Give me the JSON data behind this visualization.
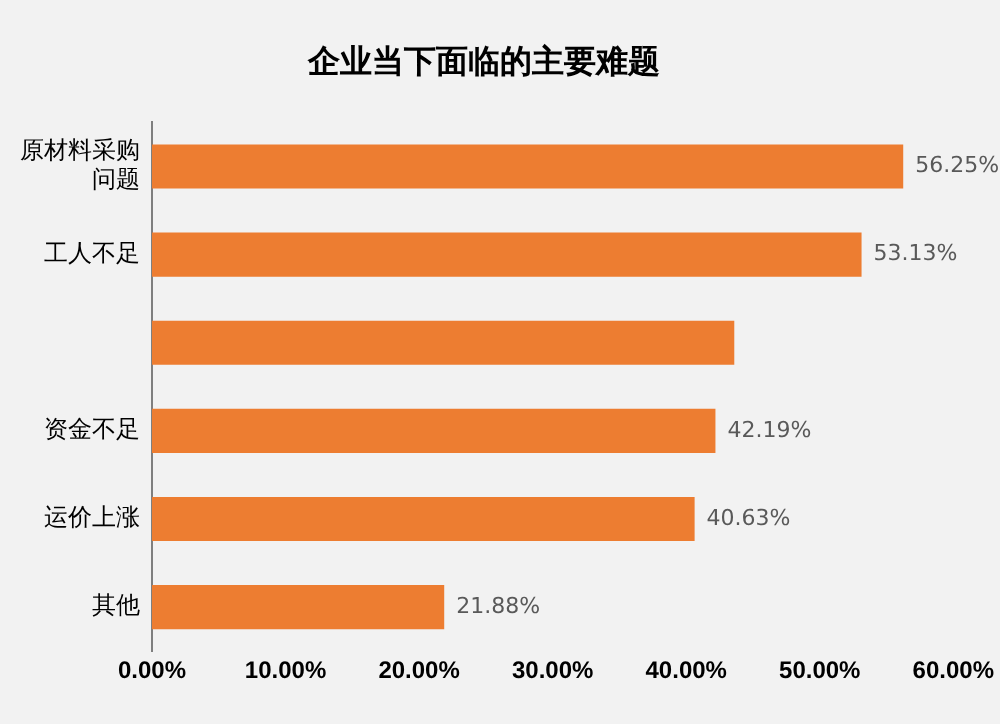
{
  "chart_data": {
    "type": "bar",
    "orientation": "horizontal",
    "title": "企业当下面临的主要难题",
    "categories": [
      "原材料采购问题",
      "工人不足",
      null,
      "资金不足",
      "运价上涨",
      "其他"
    ],
    "values": [
      56.25,
      53.13,
      43.6,
      42.19,
      40.63,
      21.88
    ],
    "value_labels": [
      "56.25%",
      "53.13%",
      null,
      "42.19%",
      "40.63%",
      "21.88%"
    ],
    "color": "#ed7d31",
    "xlim": [
      0,
      60
    ],
    "xticks": [
      {
        "value": 0,
        "label": "0.00%"
      },
      {
        "value": 10,
        "label": "10.00%"
      },
      {
        "value": 20,
        "label": "20.00%"
      },
      {
        "value": 30,
        "label": "30.00%"
      },
      {
        "value": 40,
        "label": "40.00%"
      },
      {
        "value": 50,
        "label": "50.00%"
      },
      {
        "value": 60,
        "label": "60.00%"
      }
    ],
    "grid": false,
    "legend": false
  }
}
